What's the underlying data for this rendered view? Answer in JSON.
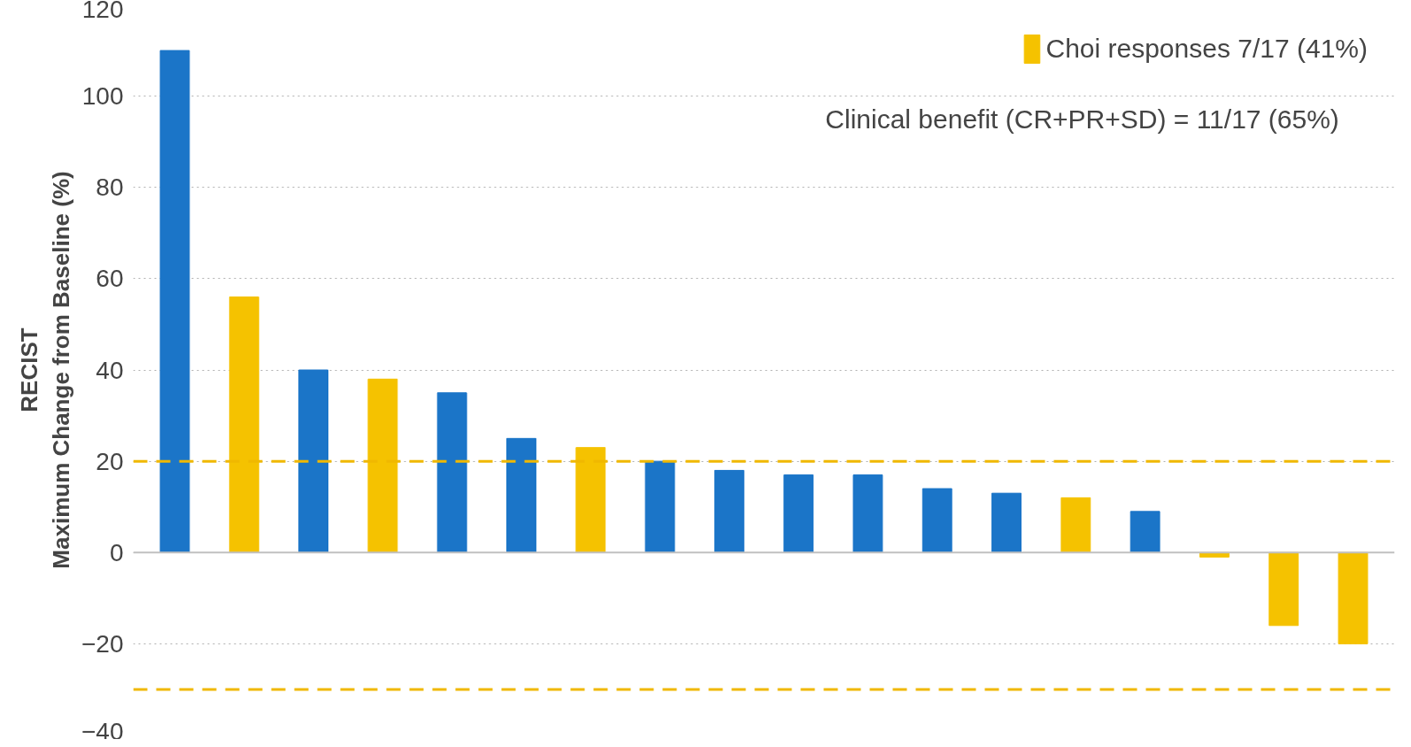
{
  "chart_data": {
    "type": "bar",
    "ylabel": "RECIST\nMaximum Change from Baseline (%)",
    "categories": [
      null,
      null,
      null,
      null,
      null,
      null,
      null,
      null,
      null,
      null,
      null,
      null,
      null,
      null,
      null,
      null,
      null,
      null
    ],
    "series": [
      {
        "color": "#1b75c8",
        "values": [
          110,
          null,
          40,
          null,
          35,
          25,
          null,
          20,
          18,
          17,
          17,
          14,
          13,
          null,
          9,
          null,
          null,
          null
        ]
      },
      {
        "name": "Choi responses 7/17 (41%)",
        "color": "#f5c200",
        "values": [
          null,
          56,
          null,
          38,
          null,
          null,
          23,
          null,
          null,
          null,
          null,
          null,
          null,
          12,
          null,
          -1,
          -16,
          -20
        ]
      }
    ],
    "ylim": [
      -40,
      120
    ],
    "yticks": [
      -40,
      -20,
      0,
      20,
      40,
      60,
      80,
      100,
      120
    ],
    "grid": "y",
    "legend": "top right",
    "ref_lines": [
      {
        "axis": "y",
        "value": 20,
        "color": "#f0b800",
        "line_style": "dashed"
      },
      {
        "axis": "y",
        "value": -30,
        "color": "#f0b800",
        "line_style": "dashed"
      }
    ],
    "annotations": [
      "Clinical benefit (CR+PR+SD) = 11/17 (65%)"
    ]
  }
}
